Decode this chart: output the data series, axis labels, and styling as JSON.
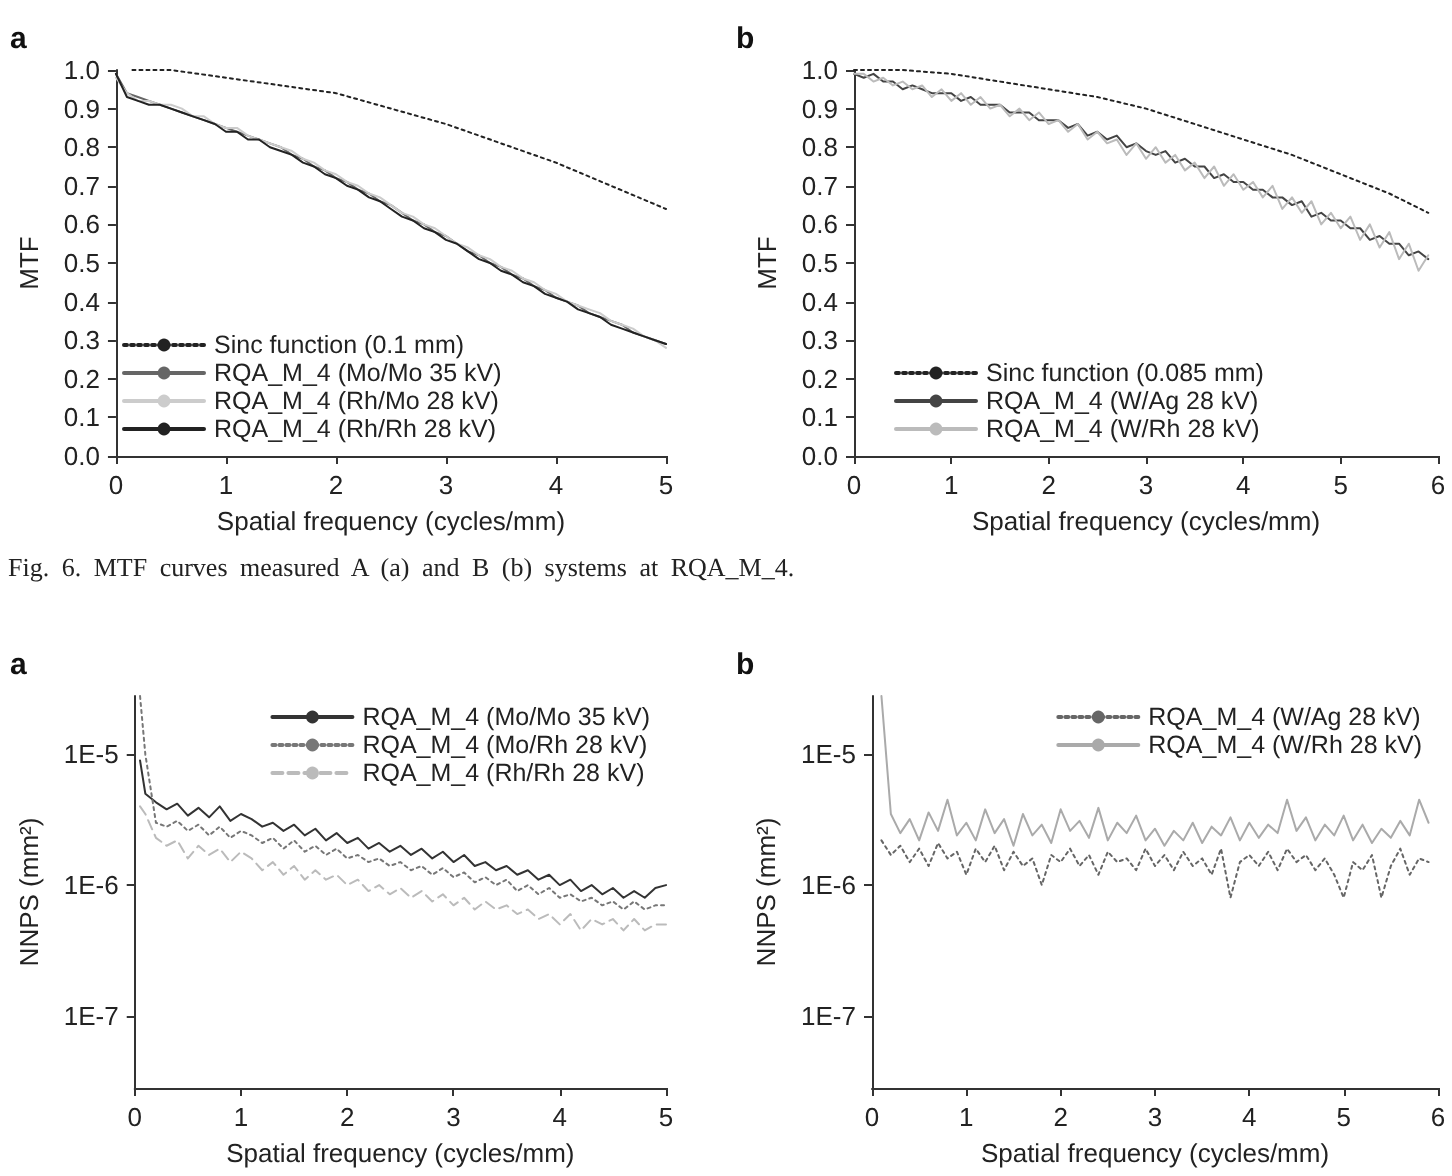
{
  "chart_data": [
    {
      "type": "line",
      "title": "a",
      "xlabel": "Spatial frequency (cycles/mm)",
      "ylabel": "MTF",
      "annotations": [
        "Fig. 6. MTF curves measured A (a) and B (b) systems at RQA_M_4."
      ],
      "xlim": [
        0,
        5
      ],
      "xticks": [
        0,
        1,
        2,
        3,
        4,
        5
      ],
      "ylim": [
        0,
        1
      ],
      "yticks": [
        {
          "value": 0,
          "label": "0.0"
        },
        {
          "value": 0.1,
          "label": "0.1"
        },
        {
          "value": 0.2,
          "label": "0.2"
        },
        {
          "value": 0.3,
          "label": "0.3"
        },
        {
          "value": 0.4,
          "label": "0.4"
        },
        {
          "value": 0.5,
          "label": "0.5"
        },
        {
          "value": 0.6,
          "label": "0.6"
        },
        {
          "value": 0.7,
          "label": "0.7"
        },
        {
          "value": 0.8,
          "label": "0.8"
        },
        {
          "value": 0.9,
          "label": "0.9"
        },
        {
          "value": 1,
          "label": "1.0"
        }
      ],
      "legend": "bottom left",
      "x": [
        0,
        0.1,
        0.2,
        0.3,
        0.4,
        0.5,
        0.6,
        0.7,
        0.8,
        0.9,
        1,
        1.1,
        1.2,
        1.3,
        1.4,
        1.5,
        1.6,
        1.7,
        1.8,
        1.9,
        2,
        2.1,
        2.2,
        2.3,
        2.4,
        2.5,
        2.6,
        2.7,
        2.8,
        2.9,
        3,
        3.1,
        3.2,
        3.3,
        3.4,
        3.5,
        3.6,
        3.7,
        3.8,
        3.9,
        4,
        4.1,
        4.2,
        4.3,
        4.4,
        4.5,
        4.6,
        4.7,
        4.8,
        4.9,
        5
      ],
      "series": [
        {
          "name": "Sinc function (0.1 mm)",
          "color": "#222222",
          "line_style": "dotted",
          "x": [
            0.15,
            0.5,
            1,
            1.5,
            2,
            2.5,
            3,
            3.5,
            4,
            4.5,
            5
          ],
          "values": [
            1.0,
            1.0,
            0.98,
            0.96,
            0.94,
            0.9,
            0.86,
            0.81,
            0.76,
            0.7,
            0.64
          ]
        },
        {
          "name": "RQA_M_4 (Mo/Mo 35 kV)",
          "color": "#666666",
          "values": [
            0.99,
            0.94,
            0.93,
            0.92,
            0.91,
            0.9,
            0.89,
            0.88,
            0.87,
            0.86,
            0.85,
            0.84,
            0.83,
            0.82,
            0.81,
            0.8,
            0.78,
            0.77,
            0.75,
            0.74,
            0.72,
            0.71,
            0.69,
            0.68,
            0.66,
            0.65,
            0.63,
            0.61,
            0.6,
            0.58,
            0.57,
            0.55,
            0.53,
            0.52,
            0.5,
            0.49,
            0.47,
            0.46,
            0.44,
            0.43,
            0.41,
            0.4,
            0.39,
            0.37,
            0.36,
            0.35,
            0.34,
            0.32,
            0.31,
            0.3,
            0.29
          ]
        },
        {
          "name": "RQA_M_4 (Rh/Mo 28 kV)",
          "color": "#cccccc",
          "values": [
            0.98,
            0.94,
            0.92,
            0.92,
            0.91,
            0.91,
            0.9,
            0.88,
            0.88,
            0.86,
            0.85,
            0.85,
            0.83,
            0.82,
            0.81,
            0.8,
            0.79,
            0.77,
            0.76,
            0.74,
            0.73,
            0.71,
            0.7,
            0.68,
            0.67,
            0.65,
            0.63,
            0.62,
            0.6,
            0.59,
            0.57,
            0.55,
            0.54,
            0.52,
            0.51,
            0.49,
            0.48,
            0.46,
            0.45,
            0.43,
            0.42,
            0.4,
            0.39,
            0.38,
            0.37,
            0.35,
            0.34,
            0.33,
            0.31,
            0.3,
            0.28
          ]
        },
        {
          "name": "RQA_M_4 (Rh/Rh 28 kV)",
          "color": "#222222",
          "values": [
            0.99,
            0.93,
            0.92,
            0.91,
            0.91,
            0.9,
            0.89,
            0.88,
            0.87,
            0.86,
            0.84,
            0.84,
            0.82,
            0.82,
            0.8,
            0.79,
            0.78,
            0.76,
            0.75,
            0.73,
            0.72,
            0.7,
            0.69,
            0.67,
            0.66,
            0.64,
            0.62,
            0.61,
            0.59,
            0.58,
            0.56,
            0.55,
            0.53,
            0.51,
            0.5,
            0.48,
            0.47,
            0.45,
            0.44,
            0.42,
            0.41,
            0.4,
            0.38,
            0.37,
            0.36,
            0.34,
            0.33,
            0.32,
            0.31,
            0.3,
            0.29
          ]
        }
      ]
    },
    {
      "type": "line",
      "title": "b",
      "xlabel": "Spatial frequency (cycles/mm)",
      "ylabel": "MTF",
      "xlim": [
        0,
        6
      ],
      "xticks": [
        0,
        1,
        2,
        3,
        4,
        5,
        6
      ],
      "ylim": [
        0,
        1
      ],
      "yticks": [
        {
          "value": 0,
          "label": "0.0"
        },
        {
          "value": 0.1,
          "label": "0.1"
        },
        {
          "value": 0.2,
          "label": "0.2"
        },
        {
          "value": 0.3,
          "label": "0.3"
        },
        {
          "value": 0.4,
          "label": "0.4"
        },
        {
          "value": 0.5,
          "label": "0.5"
        },
        {
          "value": 0.6,
          "label": "0.6"
        },
        {
          "value": 0.7,
          "label": "0.7"
        },
        {
          "value": 0.8,
          "label": "0.8"
        },
        {
          "value": 0.9,
          "label": "0.9"
        },
        {
          "value": 1,
          "label": "1.0"
        }
      ],
      "legend": "bottom left",
      "x": [
        0,
        0.1,
        0.2,
        0.3,
        0.4,
        0.5,
        0.6,
        0.7,
        0.8,
        0.9,
        1,
        1.1,
        1.2,
        1.3,
        1.4,
        1.5,
        1.6,
        1.7,
        1.8,
        1.9,
        2,
        2.1,
        2.2,
        2.3,
        2.4,
        2.5,
        2.6,
        2.7,
        2.8,
        2.9,
        3,
        3.1,
        3.2,
        3.3,
        3.4,
        3.5,
        3.6,
        3.7,
        3.8,
        3.9,
        4,
        4.1,
        4.2,
        4.3,
        4.4,
        4.5,
        4.6,
        4.7,
        4.8,
        4.9,
        5,
        5.1,
        5.2,
        5.3,
        5.4,
        5.5,
        5.6,
        5.7,
        5.8,
        5.9
      ],
      "series": [
        {
          "name": "Sinc function (0.085 mm)",
          "color": "#222222",
          "line_style": "dotted",
          "x": [
            0,
            0.5,
            1,
            1.5,
            2,
            2.5,
            3,
            3.5,
            4,
            4.5,
            5,
            5.5,
            5.9
          ],
          "values": [
            1.0,
            1.0,
            0.99,
            0.97,
            0.95,
            0.93,
            0.9,
            0.86,
            0.82,
            0.78,
            0.73,
            0.68,
            0.63
          ]
        },
        {
          "name": "RQA_M_4 (W/Ag 28 kV)",
          "color": "#444444",
          "values": [
            0.99,
            0.98,
            0.99,
            0.97,
            0.97,
            0.95,
            0.96,
            0.95,
            0.94,
            0.94,
            0.94,
            0.92,
            0.93,
            0.91,
            0.91,
            0.91,
            0.89,
            0.89,
            0.89,
            0.87,
            0.87,
            0.87,
            0.85,
            0.86,
            0.83,
            0.84,
            0.82,
            0.83,
            0.8,
            0.81,
            0.79,
            0.78,
            0.79,
            0.76,
            0.77,
            0.75,
            0.75,
            0.72,
            0.73,
            0.71,
            0.71,
            0.69,
            0.69,
            0.67,
            0.67,
            0.65,
            0.66,
            0.62,
            0.63,
            0.61,
            0.61,
            0.59,
            0.59,
            0.56,
            0.57,
            0.55,
            0.55,
            0.52,
            0.53,
            0.51
          ]
        },
        {
          "name": "RQA_M_4 (W/Rh 28 kV)",
          "color": "#bbbbbb",
          "values": [
            0.99,
            0.99,
            0.97,
            0.98,
            0.96,
            0.97,
            0.95,
            0.96,
            0.93,
            0.95,
            0.92,
            0.94,
            0.91,
            0.93,
            0.9,
            0.91,
            0.88,
            0.9,
            0.87,
            0.89,
            0.86,
            0.87,
            0.84,
            0.86,
            0.82,
            0.84,
            0.81,
            0.82,
            0.78,
            0.81,
            0.77,
            0.8,
            0.76,
            0.78,
            0.74,
            0.76,
            0.72,
            0.75,
            0.7,
            0.73,
            0.69,
            0.71,
            0.67,
            0.7,
            0.64,
            0.67,
            0.63,
            0.66,
            0.6,
            0.63,
            0.59,
            0.62,
            0.56,
            0.6,
            0.54,
            0.58,
            0.51,
            0.55,
            0.48,
            0.52
          ]
        }
      ]
    },
    {
      "type": "line",
      "title": "a",
      "xlabel": "Spatial frequency (cycles/mm)",
      "ylabel": "NNPS (mm²)",
      "log": true,
      "xlim": [
        0,
        5
      ],
      "xticks": [
        0,
        1,
        2,
        3,
        4,
        5
      ],
      "ylim": [
        2.8e-08,
        2.8e-05
      ],
      "yticks": [
        {
          "value": 1e-07,
          "label": "1E-7"
        },
        {
          "value": 1e-06,
          "label": "1E-6"
        },
        {
          "value": 1e-05,
          "label": "1E-5"
        }
      ],
      "legend": "top right",
      "x": [
        0.05,
        0.1,
        0.2,
        0.3,
        0.4,
        0.5,
        0.6,
        0.7,
        0.8,
        0.9,
        1,
        1.1,
        1.2,
        1.3,
        1.4,
        1.5,
        1.6,
        1.7,
        1.8,
        1.9,
        2,
        2.1,
        2.2,
        2.3,
        2.4,
        2.5,
        2.6,
        2.7,
        2.8,
        2.9,
        3,
        3.1,
        3.2,
        3.3,
        3.4,
        3.5,
        3.6,
        3.7,
        3.8,
        3.9,
        4,
        4.1,
        4.2,
        4.3,
        4.4,
        4.5,
        4.6,
        4.7,
        4.8,
        4.9,
        5
      ],
      "series": [
        {
          "name": "RQA_M_4 (Mo/Mo 35 kV)",
          "color": "#333333",
          "values": [
            9e-06,
            5e-06,
            4.3e-06,
            3.8e-06,
            4.2e-06,
            3.4e-06,
            3.9e-06,
            3.3e-06,
            4e-06,
            3.1e-06,
            3.5e-06,
            3.2e-06,
            2.8e-06,
            3e-06,
            2.6e-06,
            2.9e-06,
            2.4e-06,
            2.7e-06,
            2.2e-06,
            2.5e-06,
            2.1e-06,
            2.3e-06,
            1.9e-06,
            2.1e-06,
            1.8e-06,
            2e-06,
            1.7e-06,
            1.9e-06,
            1.6e-06,
            1.8e-06,
            1.5e-06,
            1.7e-06,
            1.4e-06,
            1.5e-06,
            1.3e-06,
            1.4e-06,
            1.2e-06,
            1.3e-06,
            1.1e-06,
            1.2e-06,
            1e-06,
            1.1e-06,
            9e-07,
            1e-06,
            8.5e-07,
            9.5e-07,
            8e-07,
            9e-07,
            8e-07,
            9.5e-07,
            1e-06
          ]
        },
        {
          "name": "RQA_M_4 (Mo/Rh 28 kV)",
          "color": "#777777",
          "line_style": "dotted",
          "values": [
            2.8e-05,
            1e-05,
            3e-06,
            2.8e-06,
            3.1e-06,
            2.6e-06,
            2.9e-06,
            2.4e-06,
            2.8e-06,
            2.3e-06,
            2.6e-06,
            2.4e-06,
            2.1e-06,
            2.3e-06,
            1.9e-06,
            2.2e-06,
            1.8e-06,
            2e-06,
            1.7e-06,
            1.9e-06,
            1.6e-06,
            1.7e-06,
            1.5e-06,
            1.6e-06,
            1.4e-06,
            1.5e-06,
            1.3e-06,
            1.4e-06,
            1.2e-06,
            1.35e-06,
            1.15e-06,
            1.25e-06,
            1.05e-06,
            1.15e-06,
            1e-06,
            1.1e-06,
            9e-07,
            1e-06,
            8.5e-07,
            9.5e-07,
            8e-07,
            8.5e-07,
            7.5e-07,
            8e-07,
            7e-07,
            7.5e-07,
            6.5e-07,
            7.5e-07,
            6.5e-07,
            7e-07,
            7e-07
          ]
        },
        {
          "name": "RQA_M_4 (Rh/Rh 28 kV)",
          "color": "#bbbbbb",
          "line_style": "dashed",
          "values": [
            4e-06,
            3.5e-06,
            2.3e-06,
            2e-06,
            2.2e-06,
            1.6e-06,
            2e-06,
            1.7e-06,
            1.9e-06,
            1.5e-06,
            1.8e-06,
            1.6e-06,
            1.3e-06,
            1.5e-06,
            1.2e-06,
            1.4e-06,
            1.1e-06,
            1.3e-06,
            1.1e-06,
            1.2e-06,
            1e-06,
            1.1e-06,
            9e-07,
            1e-06,
            8.5e-07,
            9.5e-07,
            8e-07,
            9e-07,
            7.5e-07,
            8.5e-07,
            7e-07,
            8e-07,
            6.5e-07,
            7.5e-07,
            6.5e-07,
            7e-07,
            6e-07,
            6.5e-07,
            5.5e-07,
            6e-07,
            5e-07,
            6e-07,
            4.5e-07,
            5.5e-07,
            5e-07,
            5.5e-07,
            4.5e-07,
            5.5e-07,
            4.5e-07,
            5e-07,
            5e-07
          ]
        }
      ]
    },
    {
      "type": "line",
      "title": "b",
      "xlabel": "Spatial frequency (cycles/mm)",
      "ylabel": "NNPS (mm²)",
      "log": true,
      "xlim": [
        0,
        6
      ],
      "xticks": [
        0,
        1,
        2,
        3,
        4,
        5,
        6
      ],
      "ylim": [
        2.8e-08,
        2.8e-05
      ],
      "yticks": [
        {
          "value": 1e-07,
          "label": "1E-7"
        },
        {
          "value": 1e-06,
          "label": "1E-6"
        },
        {
          "value": 1e-05,
          "label": "1E-5"
        }
      ],
      "legend": "top right",
      "x": [
        0.1,
        0.2,
        0.3,
        0.4,
        0.5,
        0.6,
        0.7,
        0.8,
        0.9,
        1,
        1.1,
        1.2,
        1.3,
        1.4,
        1.5,
        1.6,
        1.7,
        1.8,
        1.9,
        2,
        2.1,
        2.2,
        2.3,
        2.4,
        2.5,
        2.6,
        2.7,
        2.8,
        2.9,
        3,
        3.1,
        3.2,
        3.3,
        3.4,
        3.5,
        3.6,
        3.7,
        3.8,
        3.9,
        4,
        4.1,
        4.2,
        4.3,
        4.4,
        4.5,
        4.6,
        4.7,
        4.8,
        4.9,
        5,
        5.1,
        5.2,
        5.3,
        5.4,
        5.5,
        5.6,
        5.7,
        5.8,
        5.9
      ],
      "series": [
        {
          "name": "RQA_M_4 (W/Ag 28 kV)",
          "color": "#666666",
          "line_style": "dotted",
          "values": [
            2.2e-06,
            1.7e-06,
            2e-06,
            1.5e-06,
            1.9e-06,
            1.4e-06,
            2.1e-06,
            1.6e-06,
            1.8e-06,
            1.2e-06,
            1.9e-06,
            1.5e-06,
            2e-06,
            1.3e-06,
            1.8e-06,
            1.4e-06,
            1.6e-06,
            1e-06,
            1.7e-06,
            1.5e-06,
            1.9e-06,
            1.4e-06,
            1.7e-06,
            1.2e-06,
            1.8e-06,
            1.5e-06,
            1.6e-06,
            1.3e-06,
            1.9e-06,
            1.4e-06,
            1.7e-06,
            1.3e-06,
            1.8e-06,
            1.4e-06,
            1.6e-06,
            1.2e-06,
            1.9e-06,
            8e-07,
            1.5e-06,
            1.7e-06,
            1.4e-06,
            1.8e-06,
            1.3e-06,
            1.9e-06,
            1.5e-06,
            1.7e-06,
            1.3e-06,
            1.6e-06,
            1.2e-06,
            8e-07,
            1.5e-06,
            1.3e-06,
            1.7e-06,
            8e-07,
            1.4e-06,
            1.9e-06,
            1.2e-06,
            1.6e-06,
            1.5e-06
          ]
        },
        {
          "name": "RQA_M_4 (W/Rh 28 kV)",
          "color": "#aaaaaa",
          "values": [
            2.8e-05,
            3.5e-06,
            2.5e-06,
            3.2e-06,
            2.2e-06,
            3.6e-06,
            2.6e-06,
            4.5e-06,
            2.4e-06,
            3e-06,
            2.2e-06,
            3.8e-06,
            2.5e-06,
            3.2e-06,
            2e-06,
            3.5e-06,
            2.4e-06,
            2.9e-06,
            2.1e-06,
            3.8e-06,
            2.6e-06,
            3.1e-06,
            2.3e-06,
            3.9e-06,
            2.2e-06,
            3e-06,
            2.5e-06,
            3.4e-06,
            2.2e-06,
            2.7e-06,
            2e-06,
            2.6e-06,
            2.2e-06,
            3e-06,
            2.1e-06,
            2.8e-06,
            2.4e-06,
            3.3e-06,
            2.2e-06,
            3e-06,
            2.3e-06,
            2.9e-06,
            2.5e-06,
            4.5e-06,
            2.6e-06,
            3.3e-06,
            2.2e-06,
            2.9e-06,
            2.4e-06,
            3.4e-06,
            2.2e-06,
            2.9e-06,
            2.1e-06,
            2.7e-06,
            2.3e-06,
            3.1e-06,
            2.4e-06,
            4.5e-06,
            3e-06
          ]
        }
      ]
    }
  ]
}
